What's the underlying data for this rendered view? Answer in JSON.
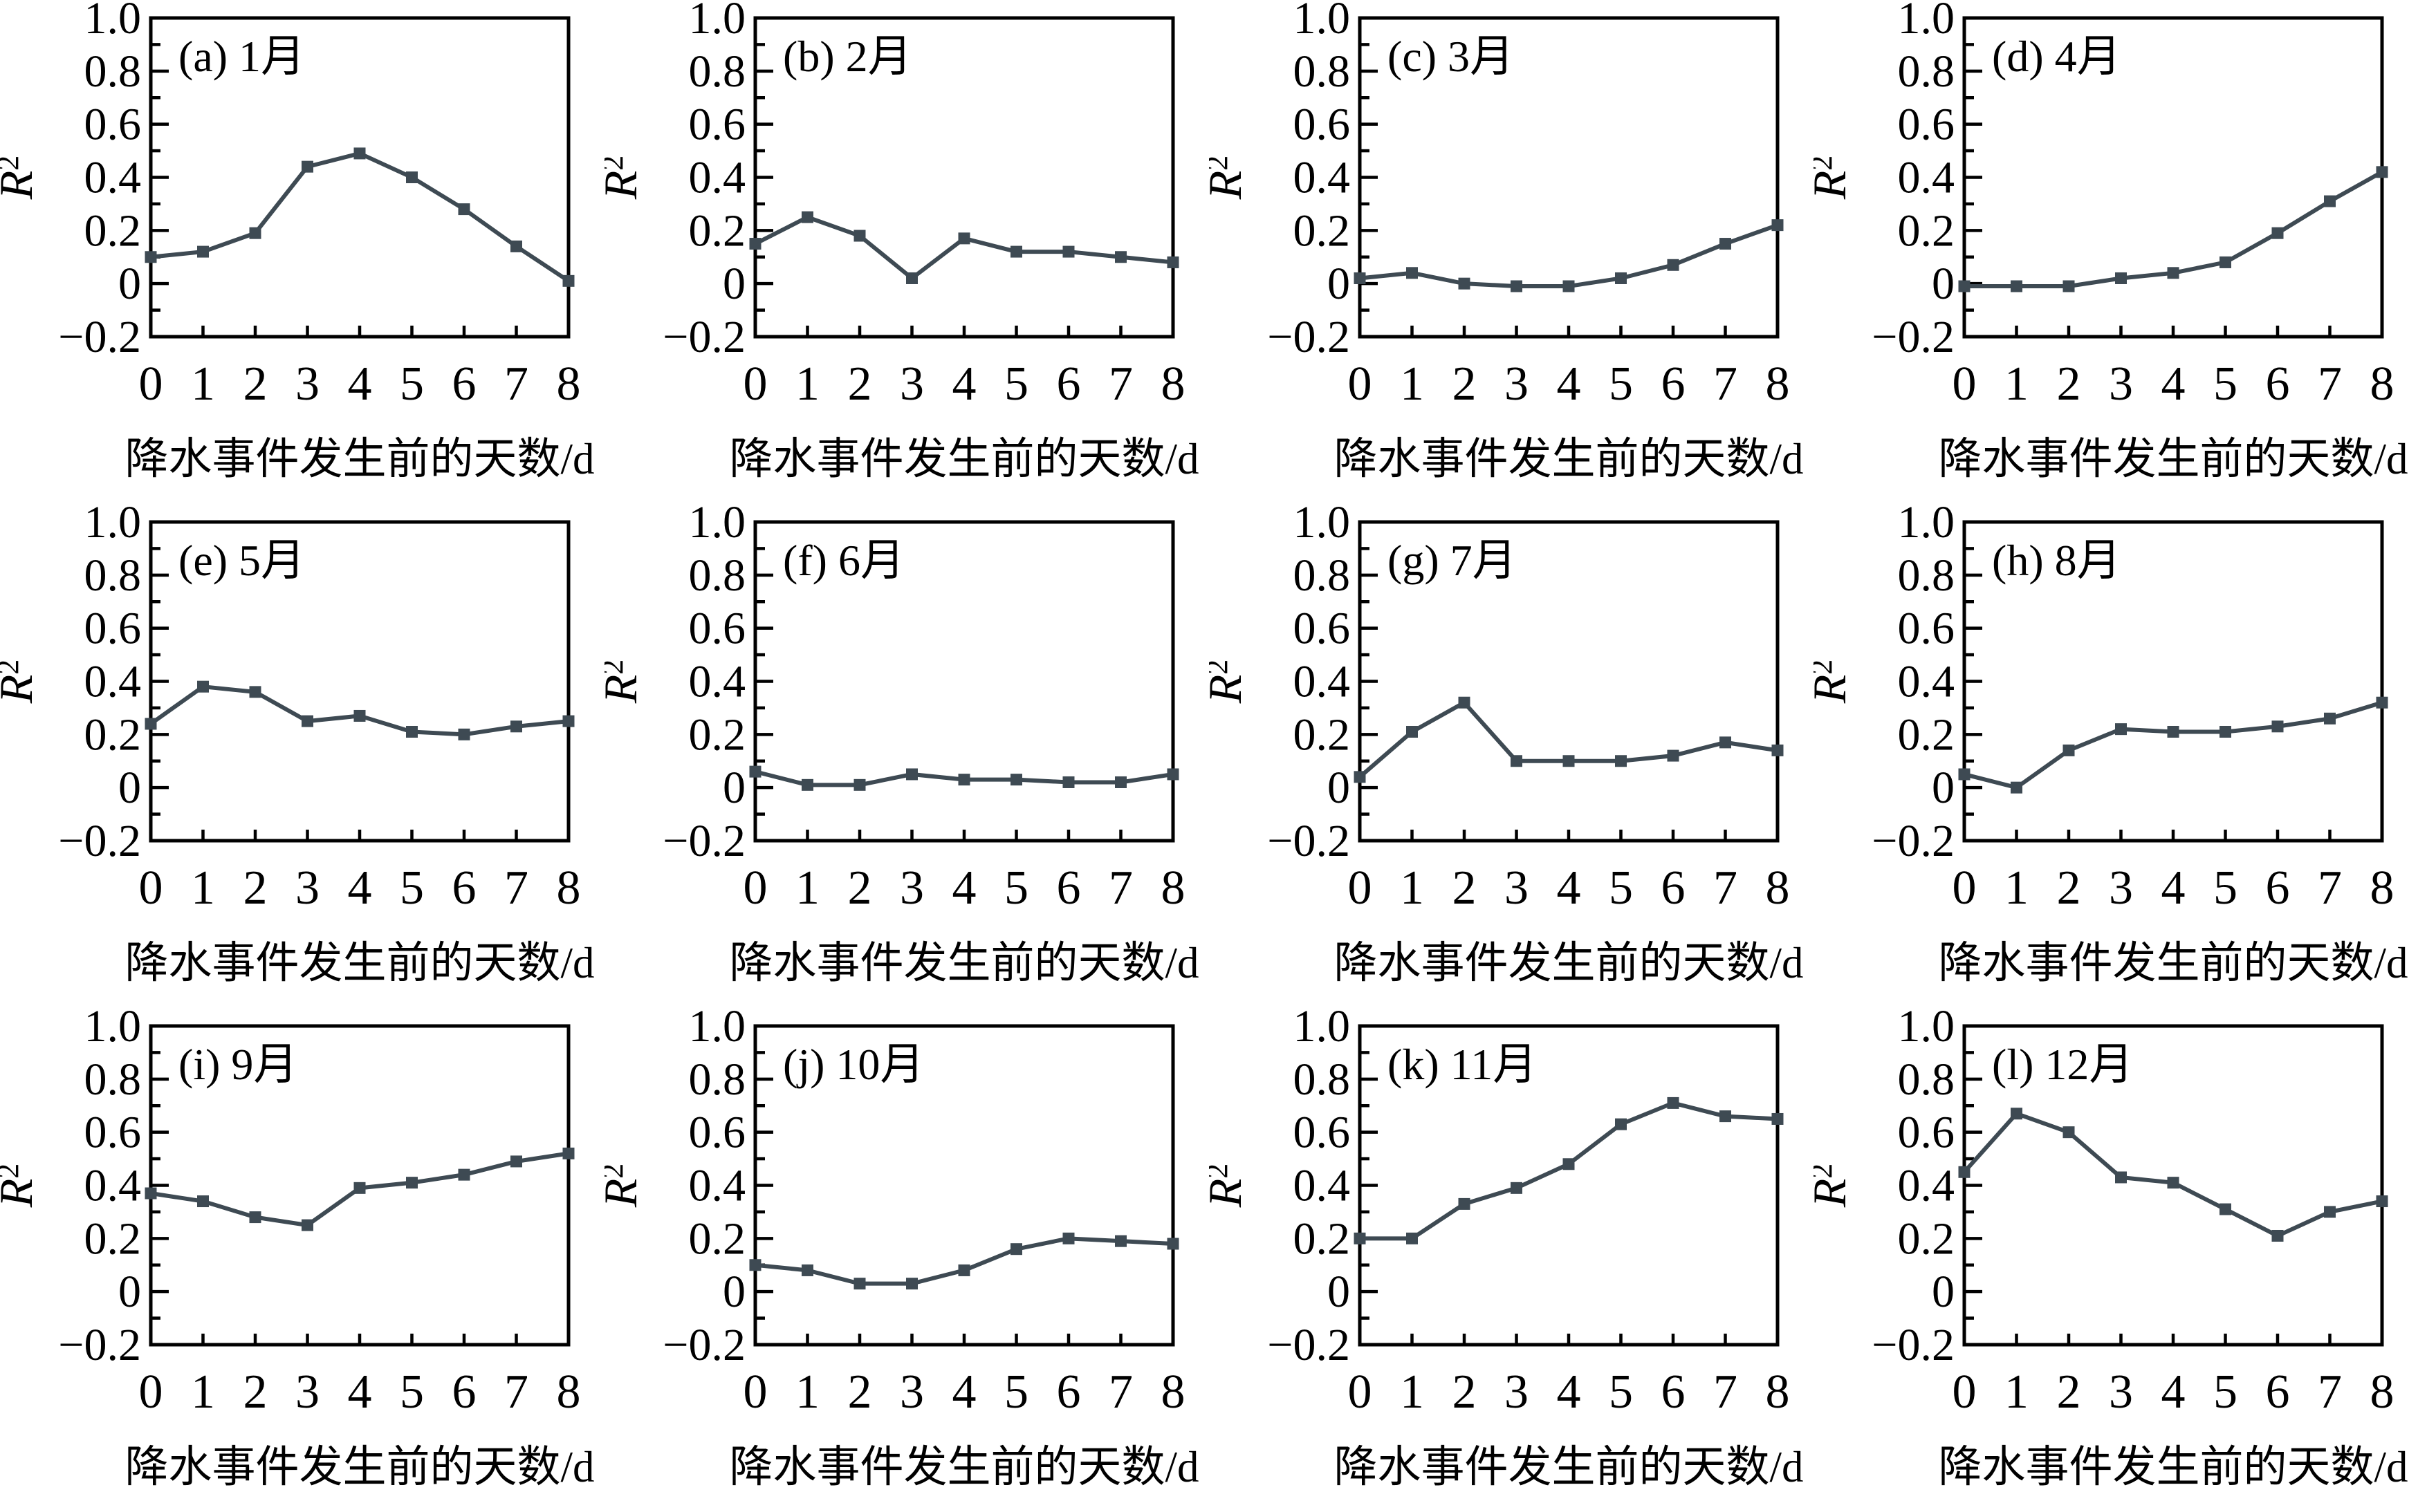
{
  "figure": {
    "background": "#ffffff",
    "axis_color": "#000000",
    "line_color": "#3e4a53",
    "marker": "square",
    "grid": "off",
    "legend": "none",
    "xlabel": "降水事件发生前的天数/d",
    "ylabel_base": "R",
    "ylabel_sup": "2",
    "xlim": [
      0,
      8
    ],
    "ylim": [
      -0.2,
      1.0
    ],
    "x_tick_values": [
      0,
      1,
      2,
      3,
      4,
      5,
      6,
      7,
      8
    ],
    "x_tick_labels": [
      "0",
      "1",
      "2",
      "3",
      "4",
      "5",
      "6",
      "7",
      "8"
    ],
    "y_tick_values": [
      1.0,
      0.8,
      0.6,
      0.4,
      0.2,
      0,
      -0.2
    ],
    "y_tick_labels": [
      "1.0",
      "0.8",
      "0.6",
      "0.4",
      "0.2",
      "0",
      "−0.2"
    ],
    "y_major_tick_values": [
      0,
      0.2,
      0.4,
      0.6,
      0.8
    ],
    "y_minor_tick_values": [
      -0.1,
      0.1,
      0.3,
      0.5,
      0.7,
      0.9
    ],
    "x_inner_tick_values": [
      1,
      2,
      3,
      4,
      5,
      6,
      7
    ]
  },
  "chart_data": [
    {
      "type": "line",
      "label": "(a) 1月",
      "x": [
        0,
        1,
        2,
        3,
        4,
        5,
        6,
        7,
        8
      ],
      "values": [
        0.1,
        0.12,
        0.19,
        0.44,
        0.49,
        0.4,
        0.28,
        0.14,
        0.01
      ]
    },
    {
      "type": "line",
      "label": "(b) 2月",
      "x": [
        0,
        1,
        2,
        3,
        4,
        5,
        6,
        7,
        8
      ],
      "values": [
        0.15,
        0.25,
        0.18,
        0.02,
        0.17,
        0.12,
        0.12,
        0.1,
        0.08
      ]
    },
    {
      "type": "line",
      "label": "(c) 3月",
      "x": [
        0,
        1,
        2,
        3,
        4,
        5,
        6,
        7,
        8
      ],
      "values": [
        0.02,
        0.04,
        0.0,
        -0.01,
        -0.01,
        0.02,
        0.07,
        0.15,
        0.22
      ]
    },
    {
      "type": "line",
      "label": "(d) 4月",
      "x": [
        0,
        1,
        2,
        3,
        4,
        5,
        6,
        7,
        8
      ],
      "values": [
        -0.01,
        -0.01,
        -0.01,
        0.02,
        0.04,
        0.08,
        0.19,
        0.31,
        0.42
      ]
    },
    {
      "type": "line",
      "label": "(e) 5月",
      "x": [
        0,
        1,
        2,
        3,
        4,
        5,
        6,
        7,
        8
      ],
      "values": [
        0.24,
        0.38,
        0.36,
        0.25,
        0.27,
        0.21,
        0.2,
        0.23,
        0.25
      ]
    },
    {
      "type": "line",
      "label": "(f) 6月",
      "x": [
        0,
        1,
        2,
        3,
        4,
        5,
        6,
        7,
        8
      ],
      "values": [
        0.06,
        0.01,
        0.01,
        0.05,
        0.03,
        0.03,
        0.02,
        0.02,
        0.05
      ]
    },
    {
      "type": "line",
      "label": "(g) 7月",
      "x": [
        0,
        1,
        2,
        3,
        4,
        5,
        6,
        7,
        8
      ],
      "values": [
        0.04,
        0.21,
        0.32,
        0.1,
        0.1,
        0.1,
        0.12,
        0.17,
        0.14
      ]
    },
    {
      "type": "line",
      "label": "(h) 8月",
      "x": [
        0,
        1,
        2,
        3,
        4,
        5,
        6,
        7,
        8
      ],
      "values": [
        0.05,
        0.0,
        0.14,
        0.22,
        0.21,
        0.21,
        0.23,
        0.26,
        0.32
      ]
    },
    {
      "type": "line",
      "label": "(i) 9月",
      "x": [
        0,
        1,
        2,
        3,
        4,
        5,
        6,
        7,
        8
      ],
      "values": [
        0.37,
        0.34,
        0.28,
        0.25,
        0.39,
        0.41,
        0.44,
        0.49,
        0.52
      ]
    },
    {
      "type": "line",
      "label": "(j) 10月",
      "x": [
        0,
        1,
        2,
        3,
        4,
        5,
        6,
        7,
        8
      ],
      "values": [
        0.1,
        0.08,
        0.03,
        0.03,
        0.08,
        0.16,
        0.2,
        0.19,
        0.18
      ]
    },
    {
      "type": "line",
      "label": "(k) 11月",
      "x": [
        0,
        1,
        2,
        3,
        4,
        5,
        6,
        7,
        8
      ],
      "values": [
        0.2,
        0.2,
        0.33,
        0.39,
        0.48,
        0.63,
        0.71,
        0.66,
        0.65
      ]
    },
    {
      "type": "line",
      "label": "(l) 12月",
      "x": [
        0,
        1,
        2,
        3,
        4,
        5,
        6,
        7,
        8
      ],
      "values": [
        0.45,
        0.67,
        0.6,
        0.43,
        0.41,
        0.31,
        0.21,
        0.3,
        0.34
      ]
    }
  ]
}
